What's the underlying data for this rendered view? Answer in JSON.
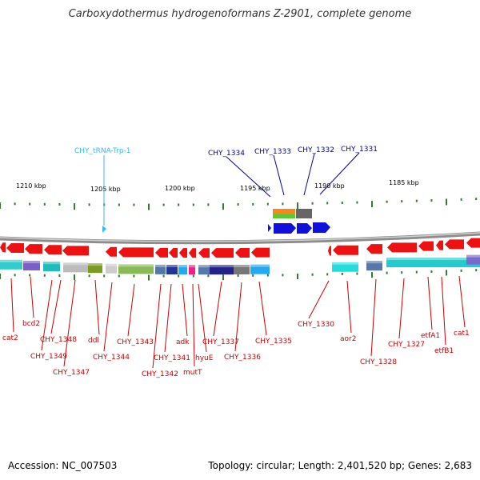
{
  "title": "Carboxydothermus hydrogenoformans Z-2901, complete genome",
  "footer": {
    "accession": "Accession: NC_007503",
    "topology": "Topology: circular; Length: 2,401,520 bp; Genes: 2,683"
  },
  "colors": {
    "backbone": "#8a8a8a",
    "tick": "#2e7d32",
    "forward_gene": "#1010dd",
    "reverse_gene": "#ee1111",
    "trna": "#33bbee",
    "top_label": "#000099",
    "bottom_label": "#cc0000"
  },
  "scale_labels": [
    "1210 kbp",
    "1205 kbp",
    "1200 kbp",
    "1195 kbp",
    "1190 kbp",
    "1185 kbp"
  ],
  "top_labels": [
    {
      "text": "CHY_tRNA-Trp-1",
      "kind": "trna"
    },
    {
      "text": "CHY_1334",
      "kind": "gene"
    },
    {
      "text": "CHY_1333",
      "kind": "gene"
    },
    {
      "text": "CHY_1332",
      "kind": "gene"
    },
    {
      "text": "CHY_1331",
      "kind": "gene"
    }
  ],
  "bottom_labels": [
    "cat2",
    "bcd2",
    "CHY_1349",
    "CHY_1348",
    "CHY_1347",
    "ddl",
    "CHY_1344",
    "CHY_1343",
    "CHY_1342",
    "CHY_1341",
    "adk",
    "mutT",
    "hyuE",
    "CHY_1337",
    "CHY_1336",
    "CHY_1335",
    "CHY_1330",
    "aor2",
    "CHY_1328",
    "CHY_1327",
    "etfA1",
    "etfB1",
    "cat1"
  ]
}
